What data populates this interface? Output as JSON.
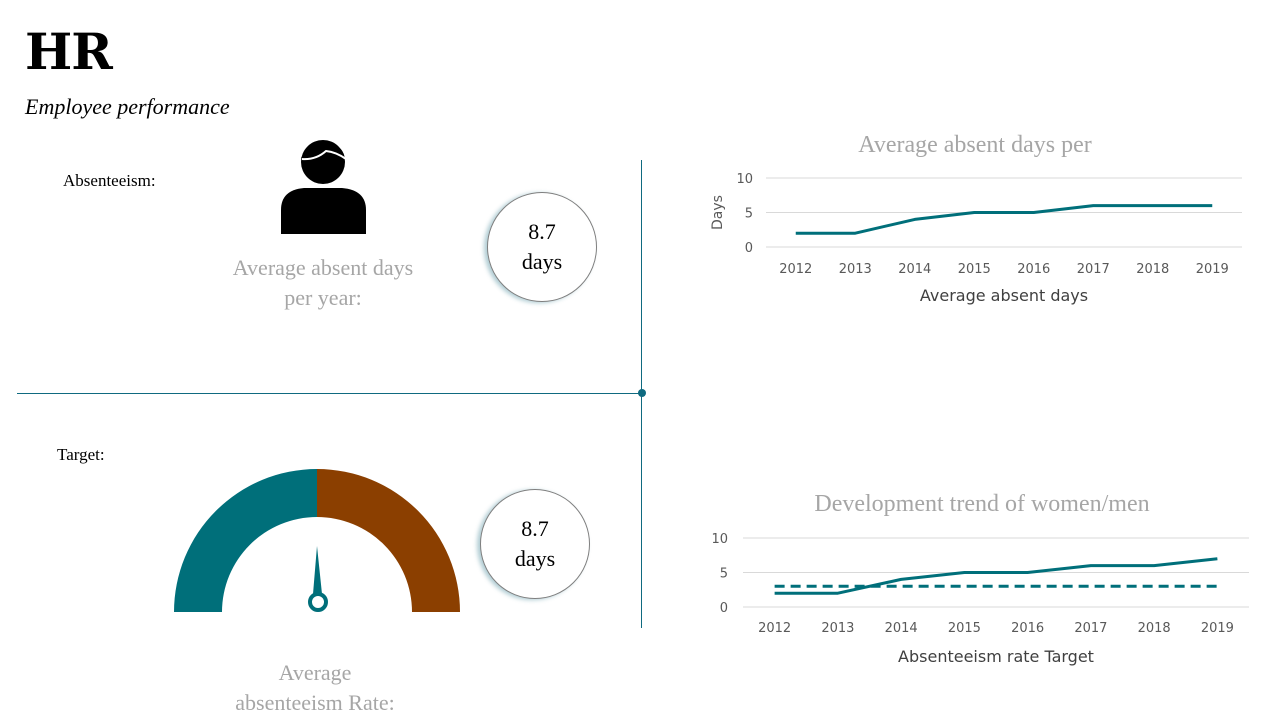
{
  "header": {
    "title": "HR",
    "subtitle": "Employee performance"
  },
  "absenteeism": {
    "label": "Absenteeism:",
    "caption_line1": "Average absent days",
    "caption_line2": "per year:",
    "circle_value": "8.7",
    "circle_unit": "days"
  },
  "target": {
    "label": "Target:",
    "caption_line1": "Average",
    "caption_line2": "absenteeism Rate:",
    "circle_value": "8.7",
    "circle_unit": "days",
    "gauge_value_fraction": 0.5
  },
  "colors": {
    "teal": "#006f7a",
    "brown": "#8b3f00",
    "divider": "#0f6a80",
    "grey_text": "#a6a6a6"
  },
  "icons": {
    "person": "person-icon"
  },
  "chart_data": [
    {
      "type": "line",
      "title": "Average absent days per",
      "ylabel": "Days",
      "xlabel": "",
      "categories": [
        "2012",
        "2013",
        "2014",
        "2015",
        "2016",
        "2017",
        "2018",
        "2019"
      ],
      "yticks": [
        "10",
        "5",
        "0"
      ],
      "ylim": [
        0,
        10
      ],
      "series": [
        {
          "name": "Average absent days",
          "values": [
            2,
            2,
            4,
            5,
            5,
            6,
            6,
            6
          ],
          "style": "solid"
        }
      ],
      "legend": [
        "Average absent days"
      ]
    },
    {
      "type": "line",
      "title": "Development trend of women/men",
      "ylabel": "",
      "xlabel": "",
      "categories": [
        "2012",
        "2013",
        "2014",
        "2015",
        "2016",
        "2017",
        "2018",
        "2019"
      ],
      "yticks": [
        "10",
        "5",
        "0"
      ],
      "ylim": [
        0,
        10
      ],
      "series": [
        {
          "name": "Absenteeism rate",
          "values": [
            2,
            2,
            4,
            5,
            5,
            6,
            6,
            7
          ],
          "style": "solid"
        },
        {
          "name": "Target",
          "values": [
            3,
            3,
            3,
            3,
            3,
            3,
            3,
            3
          ],
          "style": "dashed"
        }
      ],
      "legend": [
        "Absenteeism rate",
        "Target"
      ]
    }
  ]
}
